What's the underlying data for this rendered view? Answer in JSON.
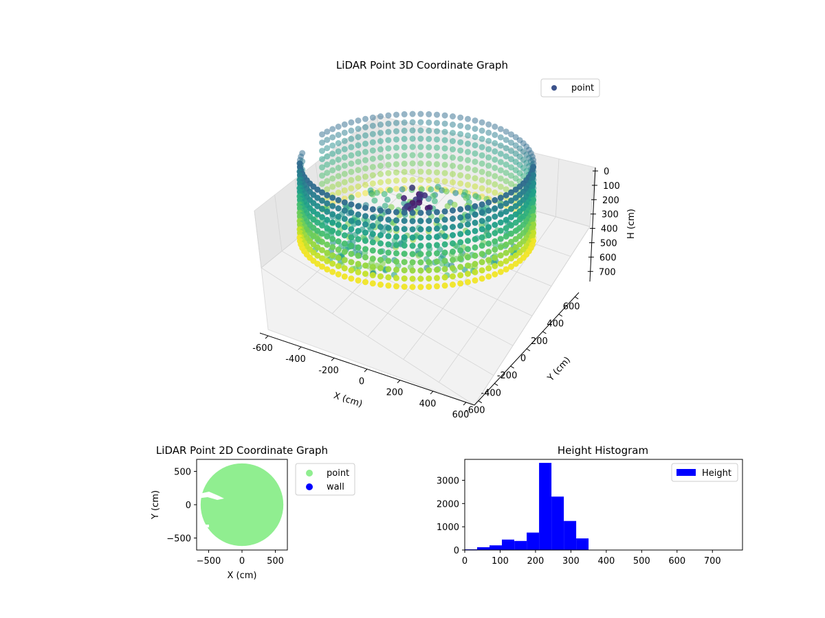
{
  "chart_data": [
    {
      "type": "scatter",
      "projection": "3d",
      "title": "LiDAR Point 3D Coordinate Graph",
      "xlabel": "X (cm)",
      "ylabel": "Y (cm)",
      "zlabel": "H (cm)",
      "xlim": [
        -650,
        650
      ],
      "ylim": [
        -650,
        650
      ],
      "zlim": [
        0,
        780
      ],
      "z_inverted": true,
      "xticks": [
        -600,
        -400,
        -200,
        0,
        200,
        400,
        600
      ],
      "yticks": [
        -600,
        -400,
        -200,
        0,
        200,
        400,
        600
      ],
      "zticks": [
        0,
        100,
        200,
        300,
        400,
        500,
        600,
        700
      ],
      "colormap": "viridis",
      "grid": true,
      "legend": {
        "position": "upper-right",
        "entries": [
          {
            "name": "point",
            "color": "#3b528b"
          }
        ]
      },
      "series": [
        {
          "name": "point",
          "description_points": [
            {
              "x": 0,
              "y": 500,
              "z": 320
            },
            {
              "x": -300,
              "y": 400,
              "z": 340
            },
            {
              "x": 500,
              "y": 100,
              "z": 300
            },
            {
              "x": -500,
              "y": 0,
              "z": 330
            },
            {
              "x": -200,
              "y": -450,
              "z": 310
            },
            {
              "x": 200,
              "y": 200,
              "z": 200
            },
            {
              "x": -150,
              "y": 100,
              "z": 140
            }
          ]
        }
      ]
    },
    {
      "type": "scatter",
      "title": "LiDAR Point 2D Coordinate Graph",
      "xlabel": "X (cm)",
      "ylabel": "Y (cm)",
      "xlim": [
        -680,
        680
      ],
      "ylim": [
        -680,
        680
      ],
      "xticks": [
        -500,
        0,
        500
      ],
      "yticks": [
        -500,
        0,
        500
      ],
      "legend": {
        "position": "outside-right",
        "entries": [
          {
            "name": "point",
            "color": "#90ee90"
          },
          {
            "name": "wall",
            "color": "#0000ff"
          }
        ]
      },
      "series": [
        {
          "name": "point",
          "shape": "disk",
          "center": [
            0,
            0
          ],
          "radius": 620,
          "color": "#90ee90"
        },
        {
          "name": "wall",
          "points": [],
          "color": "#0000ff"
        }
      ]
    },
    {
      "type": "bar",
      "subtype": "histogram",
      "title": "Height Histogram",
      "xlabel": "",
      "ylabel": "",
      "xlim": [
        0,
        785
      ],
      "ylim": [
        0,
        3900
      ],
      "xticks": [
        0,
        100,
        200,
        300,
        400,
        500,
        600,
        700
      ],
      "yticks": [
        0,
        1000,
        2000,
        3000
      ],
      "bin_width": 35,
      "bin_edges": [
        0,
        35,
        70,
        105,
        140,
        175,
        210,
        245,
        280,
        315,
        350,
        385,
        420,
        455,
        490,
        525,
        560,
        595,
        630,
        665,
        700,
        735,
        770
      ],
      "values": [
        30,
        120,
        200,
        450,
        390,
        750,
        3750,
        2300,
        1250,
        500,
        8,
        5,
        4,
        3,
        3,
        3,
        3,
        3,
        3,
        3,
        3,
        3
      ],
      "color": "#0000ff",
      "legend": {
        "position": "upper-right",
        "entries": [
          {
            "name": "Height",
            "color": "#0000ff"
          }
        ]
      }
    }
  ]
}
